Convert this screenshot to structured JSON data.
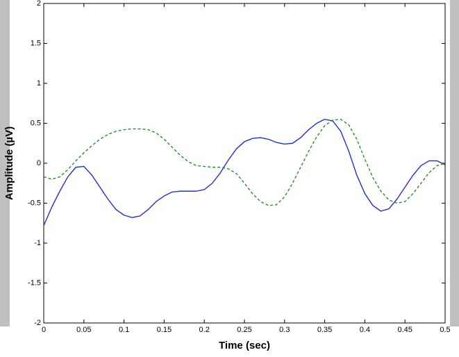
{
  "chart_data": {
    "type": "line",
    "x_label": "Time (sec)",
    "y_label": "Amplitude (µV)",
    "x": [
      0,
      0.01,
      0.02,
      0.03,
      0.04,
      0.05,
      0.06,
      0.07,
      0.08,
      0.09,
      0.1,
      0.11,
      0.12,
      0.13,
      0.14,
      0.15,
      0.16,
      0.17,
      0.18,
      0.19,
      0.2,
      0.21,
      0.22,
      0.23,
      0.24,
      0.25,
      0.26,
      0.27,
      0.28,
      0.29,
      0.3,
      0.31,
      0.32,
      0.33,
      0.34,
      0.35,
      0.36,
      0.37,
      0.38,
      0.39,
      0.4,
      0.41,
      0.42,
      0.43,
      0.44,
      0.45,
      0.46,
      0.47,
      0.48,
      0.49,
      0.5
    ],
    "series": [
      {
        "color": "#1f2fd0",
        "dash": "solid",
        "values": [
          -0.78,
          -0.55,
          -0.35,
          -0.17,
          -0.05,
          -0.04,
          -0.15,
          -0.3,
          -0.45,
          -0.58,
          -0.65,
          -0.68,
          -0.66,
          -0.58,
          -0.48,
          -0.41,
          -0.36,
          -0.35,
          -0.35,
          -0.35,
          -0.33,
          -0.25,
          -0.12,
          0.04,
          0.18,
          0.27,
          0.31,
          0.32,
          0.3,
          0.26,
          0.24,
          0.25,
          0.32,
          0.42,
          0.5,
          0.55,
          0.53,
          0.4,
          0.15,
          -0.15,
          -0.38,
          -0.53,
          -0.6,
          -0.57,
          -0.45,
          -0.3,
          -0.15,
          -0.03,
          0.03,
          0.03,
          -0.02
        ]
      },
      {
        "color": "#2a8a2a",
        "dash": "dashed",
        "values": [
          -0.17,
          -0.2,
          -0.17,
          -0.08,
          0.03,
          0.13,
          0.22,
          0.3,
          0.36,
          0.4,
          0.42,
          0.43,
          0.43,
          0.42,
          0.38,
          0.3,
          0.2,
          0.1,
          0.02,
          -0.03,
          -0.04,
          -0.05,
          -0.05,
          -0.07,
          -0.13,
          -0.25,
          -0.38,
          -0.48,
          -0.53,
          -0.52,
          -0.42,
          -0.25,
          -0.05,
          0.15,
          0.33,
          0.47,
          0.54,
          0.55,
          0.48,
          0.3,
          0.05,
          -0.18,
          -0.35,
          -0.46,
          -0.5,
          -0.48,
          -0.38,
          -0.25,
          -0.12,
          -0.03,
          0.0
        ]
      }
    ],
    "xlim": [
      0,
      0.5
    ],
    "xticks": [
      0,
      0.05,
      0.1,
      0.15,
      0.2,
      0.25,
      0.3,
      0.35,
      0.4,
      0.45,
      0.5
    ],
    "ylim": [
      -2,
      2
    ],
    "yticks": [
      -2,
      -1.5,
      -1,
      -0.5,
      0,
      0.5,
      1,
      1.5,
      2
    ],
    "grid": false
  }
}
